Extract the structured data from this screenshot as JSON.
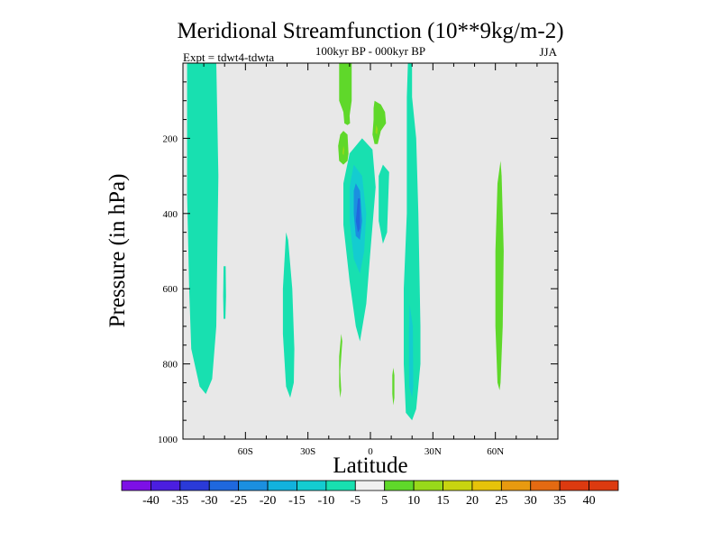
{
  "chart_data": {
    "type": "contour",
    "title": "Meridional Streamfunction (10**9kg/m-2)",
    "subtitle": "100kyr BP - 000kyr BP",
    "left_label": "Expt = tdwt4-tdwta",
    "right_label": "JJA",
    "xlabel": "Latitude",
    "ylabel": "Pressure (in hPa)",
    "xlim": [
      -90,
      90
    ],
    "ylim": [
      1000,
      0
    ],
    "x_ticks": [
      -60,
      -30,
      0,
      30,
      60
    ],
    "x_tick_labels": [
      "60S",
      "30S",
      "0",
      "30N",
      "60N"
    ],
    "y_ticks": [
      200,
      400,
      600,
      800,
      1000
    ],
    "y_tick_labels": [
      "200",
      "400",
      "600",
      "800",
      "1000"
    ],
    "background_color": "#e8e8e8",
    "levels": [
      "-40",
      "-35",
      "-30",
      "-25",
      "-20",
      "-15",
      "-10",
      "-5",
      "5",
      "10",
      "15",
      "20",
      "25",
      "30",
      "35",
      "40"
    ],
    "colors": [
      "#7d10e6",
      "#4b1ee0",
      "#2a3ad8",
      "#1f68de",
      "#1b8fe0",
      "#12b2dd",
      "#14ccd0",
      "#18e0b0",
      "#f0f0f0",
      "#5fd82a",
      "#98d91a",
      "#c8d410",
      "#e6c30a",
      "#e89a10",
      "#e46a12",
      "#dc3a10"
    ],
    "features": [
      {
        "name": "sh-polar-cell",
        "category": "-10 to -5",
        "color": "#18e0b0",
        "points": [
          [
            -88,
            0
          ],
          [
            -74,
            0
          ],
          [
            -73,
            300
          ],
          [
            -74,
            700
          ],
          [
            -76,
            840
          ],
          [
            -79,
            880
          ],
          [
            -82,
            860
          ],
          [
            -86,
            760
          ],
          [
            -87,
            600
          ],
          [
            -88,
            350
          ]
        ]
      },
      {
        "name": "sh-small-cell",
        "category": "-10 to -5",
        "color": "#18e0b0",
        "points": [
          [
            -70.5,
            540
          ],
          [
            -69.5,
            540
          ],
          [
            -69.3,
            620
          ],
          [
            -69.6,
            680
          ],
          [
            -70.5,
            680
          ],
          [
            -70.7,
            620
          ]
        ]
      },
      {
        "name": "sh-mid-cell",
        "category": "-10 to -5",
        "color": "#18e0b0",
        "points": [
          [
            -40.5,
            450
          ],
          [
            -39.5,
            470
          ],
          [
            -37.5,
            600
          ],
          [
            -36.5,
            760
          ],
          [
            -36.8,
            850
          ],
          [
            -38.5,
            890
          ],
          [
            -40.5,
            860
          ],
          [
            -42,
            720
          ],
          [
            -42,
            600
          ]
        ]
      },
      {
        "name": "tropical-cell-outer",
        "category": "-10 to -5",
        "color": "#18e0b0",
        "points": [
          [
            -4,
            200
          ],
          [
            1,
            230
          ],
          [
            2.5,
            330
          ],
          [
            0,
            500
          ],
          [
            -2,
            640
          ],
          [
            -5,
            740
          ],
          [
            -7,
            700
          ],
          [
            -10,
            580
          ],
          [
            -13,
            430
          ],
          [
            -13,
            320
          ],
          [
            -10,
            240
          ]
        ]
      },
      {
        "name": "tropical-cell-mid",
        "category": "-15 to -10",
        "color": "#14ccd0",
        "points": [
          [
            -8,
            270
          ],
          [
            -4,
            300
          ],
          [
            -2,
            400
          ],
          [
            -3,
            500
          ],
          [
            -5,
            560
          ],
          [
            -8,
            520
          ],
          [
            -10,
            420
          ],
          [
            -10,
            330
          ]
        ]
      },
      {
        "name": "tropical-cell-inner",
        "category": "-20 to -15",
        "color": "#1b8fe0",
        "points": [
          [
            -7,
            320
          ],
          [
            -5,
            340
          ],
          [
            -4,
            420
          ],
          [
            -5,
            470
          ],
          [
            -7,
            460
          ],
          [
            -8,
            400
          ],
          [
            -8,
            340
          ]
        ]
      },
      {
        "name": "tropical-cell-core",
        "category": "-25 to -20",
        "color": "#1f68de",
        "points": [
          [
            -5,
            360
          ],
          [
            -5,
            440
          ],
          [
            -6,
            450
          ],
          [
            -7,
            420
          ],
          [
            -6,
            360
          ]
        ]
      },
      {
        "name": "nh-cell-left-strip",
        "category": "-10 to -5",
        "color": "#18e0b0",
        "points": [
          [
            6,
            270
          ],
          [
            9,
            290
          ],
          [
            8,
            450
          ],
          [
            6,
            480
          ],
          [
            4,
            420
          ],
          [
            4,
            300
          ]
        ]
      },
      {
        "name": "nh-subtropical-cell",
        "category": "-10 to -5",
        "color": "#18e0b0",
        "points": [
          [
            18,
            0
          ],
          [
            20,
            0
          ],
          [
            20,
            90
          ],
          [
            22,
            200
          ],
          [
            23,
            400
          ],
          [
            24,
            700
          ],
          [
            24,
            800
          ],
          [
            22,
            920
          ],
          [
            20,
            950
          ],
          [
            17,
            930
          ],
          [
            16,
            800
          ],
          [
            16,
            600
          ],
          [
            17.5,
            400
          ],
          [
            17.5,
            200
          ],
          [
            17.5,
            90
          ]
        ]
      },
      {
        "name": "nh-subtropical-core",
        "category": "-15 to -10",
        "color": "#14ccd0",
        "points": [
          [
            18.8,
            640
          ],
          [
            20.4,
            700
          ],
          [
            20.6,
            860
          ],
          [
            20,
            890
          ],
          [
            18.6,
            860
          ],
          [
            18.5,
            720
          ]
        ]
      },
      {
        "name": "sh-green-top-column",
        "category": "5 to 10",
        "color": "#5fd82a",
        "points": [
          [
            -15,
            0
          ],
          [
            -9,
            0
          ],
          [
            -9,
            100
          ],
          [
            -10,
            140
          ],
          [
            -9.8,
            160
          ],
          [
            -11,
            165
          ],
          [
            -12.5,
            160
          ],
          [
            -13,
            130
          ],
          [
            -15,
            100
          ]
        ]
      },
      {
        "name": "sh-green-blob",
        "category": "5 to 10",
        "color": "#5fd82a",
        "points": [
          [
            -13,
            180
          ],
          [
            -11,
            190
          ],
          [
            -10.5,
            240
          ],
          [
            -11,
            260
          ],
          [
            -13,
            270
          ],
          [
            -15,
            260
          ],
          [
            -15.5,
            220
          ],
          [
            -14.5,
            190
          ]
        ]
      },
      {
        "name": "sh-green-blob-core",
        "category": "10 to 15",
        "color": "#98d91a",
        "points": [
          [
            -13,
            220
          ],
          [
            -12.5,
            230
          ],
          [
            -12.8,
            245
          ],
          [
            -13.4,
            240
          ]
        ]
      },
      {
        "name": "nh-green-top-blob",
        "category": "5 to 10",
        "color": "#5fd82a",
        "points": [
          [
            2,
            100
          ],
          [
            5,
            110
          ],
          [
            7,
            130
          ],
          [
            7.5,
            160
          ],
          [
            5,
            180
          ],
          [
            3.5,
            215
          ],
          [
            2,
            215
          ],
          [
            1,
            190
          ],
          [
            1.5,
            150
          ],
          [
            1.5,
            120
          ]
        ]
      },
      {
        "name": "nh-green-top-core",
        "category": "10 to 15",
        "color": "#98d91a",
        "points": [
          [
            2.8,
            165
          ],
          [
            3.5,
            175
          ],
          [
            3.2,
            190
          ],
          [
            2.4,
            185
          ]
        ]
      },
      {
        "name": "sh-green-low-strip",
        "category": "5 to 10",
        "color": "#5fd82a",
        "points": [
          [
            -14,
            720
          ],
          [
            -13.5,
            740
          ],
          [
            -14.5,
            820
          ],
          [
            -14,
            870
          ],
          [
            -14.5,
            890
          ],
          [
            -15,
            860
          ],
          [
            -15,
            780
          ]
        ]
      },
      {
        "name": "nh-green-low-strip",
        "category": "5 to 10",
        "color": "#5fd82a",
        "points": [
          [
            11,
            810
          ],
          [
            11.5,
            830
          ],
          [
            11.5,
            890
          ],
          [
            11,
            910
          ],
          [
            10.5,
            880
          ],
          [
            10.5,
            830
          ]
        ]
      },
      {
        "name": "nh-high-lat-green",
        "category": "5 to 10",
        "color": "#5fd82a",
        "points": [
          [
            62.5,
            260
          ],
          [
            63,
            300
          ],
          [
            64,
            500
          ],
          [
            63.5,
            700
          ],
          [
            62.5,
            850
          ],
          [
            62,
            870
          ],
          [
            61,
            850
          ],
          [
            60,
            700
          ],
          [
            60,
            500
          ],
          [
            61,
            320
          ]
        ]
      }
    ]
  }
}
